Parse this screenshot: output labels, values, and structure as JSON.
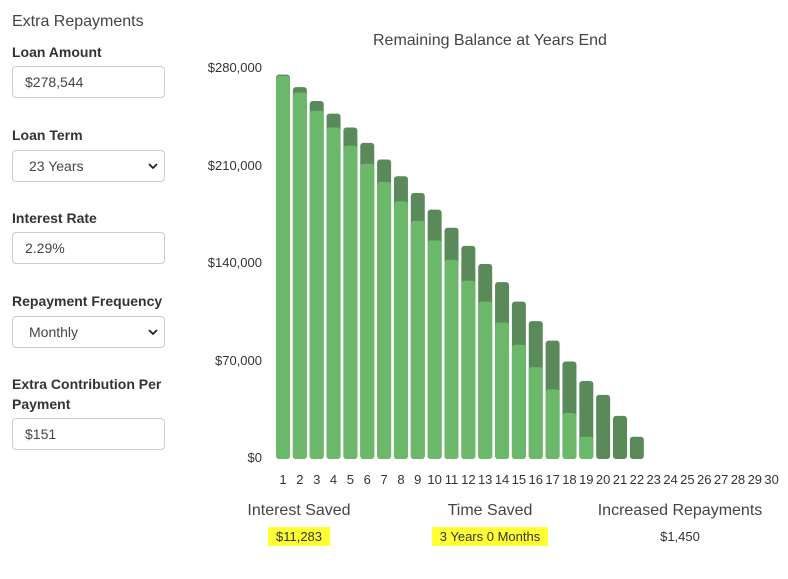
{
  "panel": {
    "title": "Extra Repayments",
    "loan_amount": {
      "label": "Loan Amount",
      "value": "$278,544"
    },
    "loan_term": {
      "label": "Loan Term",
      "value": "23 Years"
    },
    "interest_rate": {
      "label": "Interest Rate",
      "value": "2.29%"
    },
    "repayment_frequency": {
      "label": "Repayment Frequency",
      "value": "Monthly"
    },
    "extra_contribution": {
      "label_line1": "Extra Contribution Per",
      "label_line2": "Payment",
      "value": "$151"
    }
  },
  "summary": {
    "interest_saved": {
      "label": "Interest Saved",
      "value": "$11,283"
    },
    "time_saved": {
      "label": "Time Saved",
      "value": "3 Years 0 Months"
    },
    "increased_repayments": {
      "label": "Increased Repayments",
      "value": "$1,450"
    },
    "highlight_color": "#ffff33"
  },
  "chart_data": {
    "type": "bar",
    "title": "Remaining Balance at Years End",
    "colors": {
      "with_extra": "#6bb86b",
      "original": "#5a8a5a"
    },
    "y_ticks": [
      "$0",
      "$70,000",
      "$140,000",
      "$210,000",
      "$280,000"
    ],
    "ylim": [
      0,
      280000
    ],
    "categories": [
      "1",
      "2",
      "3",
      "4",
      "5",
      "6",
      "7",
      "8",
      "9",
      "10",
      "11",
      "12",
      "13",
      "14",
      "15",
      "16",
      "17",
      "18",
      "19",
      "20",
      "21",
      "22",
      "23",
      "24",
      "25",
      "26",
      "27",
      "28",
      "29",
      "30"
    ],
    "series": [
      {
        "values": [
          275000,
          263000,
          250000,
          238000,
          225000,
          212000,
          199000,
          185000,
          171000,
          157000,
          143000,
          128000,
          113000,
          98000,
          82000,
          66000,
          50000,
          33000,
          16000,
          0,
          0,
          0,
          0,
          0,
          0,
          0,
          0,
          0,
          0,
          0
        ]
      },
      {
        "values": [
          276000,
          267000,
          257000,
          248000,
          238000,
          227000,
          215000,
          203000,
          191000,
          179000,
          166000,
          153000,
          140000,
          127000,
          113000,
          99000,
          85000,
          70000,
          56000,
          46000,
          31000,
          16000,
          0,
          0,
          0,
          0,
          0,
          0,
          0,
          0
        ]
      }
    ]
  }
}
